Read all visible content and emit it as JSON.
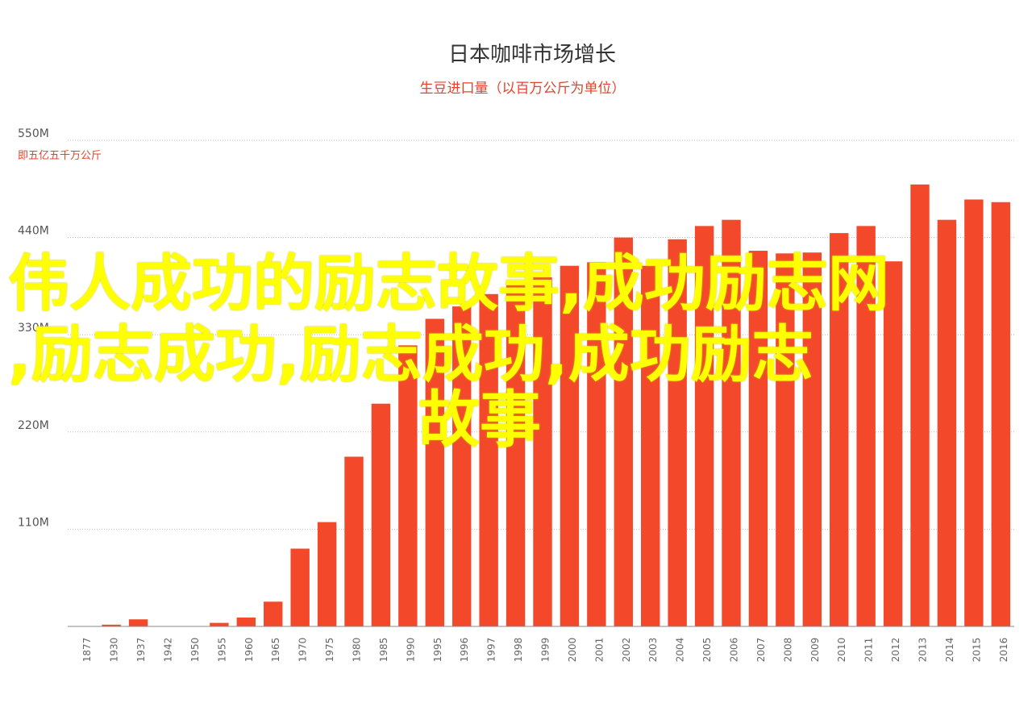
{
  "chart_data": {
    "type": "bar",
    "title": "日本咖啡市场增长",
    "subtitle": "生豆进口量（以百万公斤为单位）",
    "unit_note": "即五亿五千万公斤",
    "categories": [
      "1877",
      "1930",
      "1937",
      "1942",
      "1950",
      "1955",
      "1960",
      "1965",
      "1970",
      "1975",
      "1980",
      "1985",
      "1990",
      "1995",
      "1996",
      "1997",
      "1998",
      "1999",
      "2000",
      "2001",
      "2002",
      "2003",
      "2004",
      "2005",
      "2006",
      "2007",
      "2008",
      "2009",
      "2010",
      "2011",
      "2012",
      "2013",
      "2014",
      "2015",
      "2016"
    ],
    "values": [
      0,
      2,
      8,
      0,
      0,
      4,
      10,
      28,
      88,
      118,
      192,
      252,
      318,
      348,
      362,
      376,
      388,
      395,
      408,
      412,
      440,
      408,
      438,
      453,
      460,
      425,
      422,
      423,
      445,
      453,
      413,
      500,
      460,
      483,
      480
    ],
    "yticks": [
      {
        "value": 110,
        "label": "110M"
      },
      {
        "value": 220,
        "label": "220M"
      },
      {
        "value": 330,
        "label": "330M"
      },
      {
        "value": 440,
        "label": "440M"
      },
      {
        "value": 550,
        "label": "550M"
      }
    ],
    "ylim": [
      0,
      550
    ],
    "grid": true,
    "bar_color": "#f4482b",
    "accent_color": "#e8402a"
  },
  "overlay": {
    "line1": "伟人成功的励志故事,成功励志网",
    "line2": ",励志成功,励志成功,成功励志",
    "line3": "故事"
  }
}
